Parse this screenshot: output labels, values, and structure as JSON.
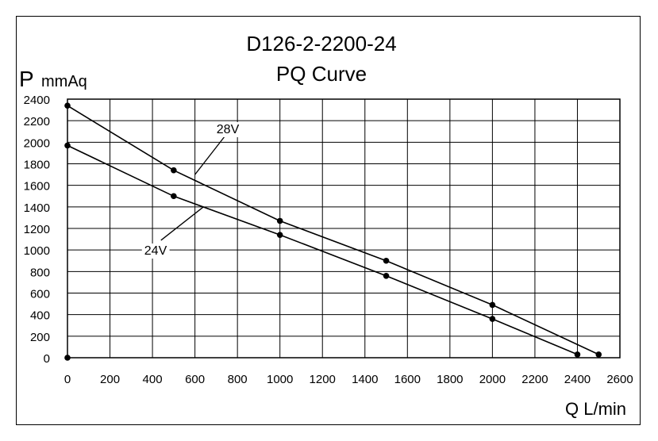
{
  "chart_data": {
    "type": "line",
    "title": "D126-2-2200-24",
    "subtitle": "PQ Curve",
    "ylabel_symbol": "P",
    "ylabel_unit": "mmAq",
    "xlabel": "Q L/min",
    "xlim": [
      0,
      2600
    ],
    "ylim": [
      0,
      2400
    ],
    "x_ticks": [
      0,
      200,
      400,
      600,
      800,
      1000,
      1200,
      1400,
      1600,
      1800,
      2000,
      2200,
      2400,
      2600
    ],
    "y_ticks": [
      0,
      200,
      400,
      600,
      800,
      1000,
      1200,
      1400,
      1600,
      1800,
      2000,
      2200,
      2400
    ],
    "grid": true,
    "series": [
      {
        "name": "28V",
        "points": [
          [
            0,
            2340
          ],
          [
            500,
            1740
          ],
          [
            1000,
            1270
          ],
          [
            1500,
            900
          ],
          [
            2000,
            490
          ],
          [
            2500,
            30
          ]
        ]
      },
      {
        "name": "24V",
        "points": [
          [
            0,
            1970
          ],
          [
            500,
            1500
          ],
          [
            1000,
            1140
          ],
          [
            1500,
            760
          ],
          [
            2000,
            360
          ],
          [
            2400,
            30
          ]
        ]
      }
    ],
    "extra_points": [
      [
        0,
        0
      ]
    ],
    "colors": {
      "line": "#000000",
      "grid": "#000000",
      "background": "#ffffff"
    }
  }
}
